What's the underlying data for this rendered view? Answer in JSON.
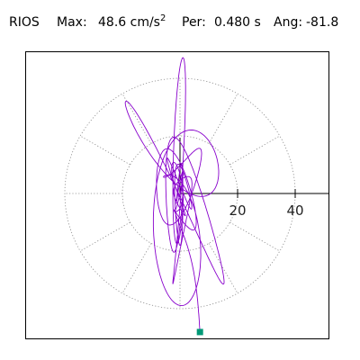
{
  "header": {
    "station": "RIOS",
    "max_label": "Max:",
    "max_value": "48.6 cm/s",
    "max_unit_power": "2",
    "period_label": "Per:",
    "period_value": "0.480 s",
    "angle_label": "Ang:",
    "angle_value": "-81.8"
  },
  "chart_data": {
    "type": "polar-orbit",
    "title": "",
    "units": "cm/s2",
    "peak_amplitude": 48.6,
    "period_s": 0.48,
    "peak_angle_deg": -81.8,
    "radial_rings": [
      20,
      40
    ],
    "radial_ticks": [
      20,
      40
    ],
    "radial_tick_labels": [
      "20",
      "40"
    ],
    "angular_spokes_deg": [
      0,
      30,
      60,
      90,
      120,
      150,
      180,
      210,
      240,
      270,
      300,
      330
    ],
    "axis_range": {
      "x": [
        -56,
        56
      ],
      "y": [
        -50,
        53
      ]
    },
    "grid": true,
    "trace_color": "#8800cc",
    "marker": {
      "color": "#009977",
      "angle_deg": -81.8,
      "radius": 48.6
    }
  }
}
